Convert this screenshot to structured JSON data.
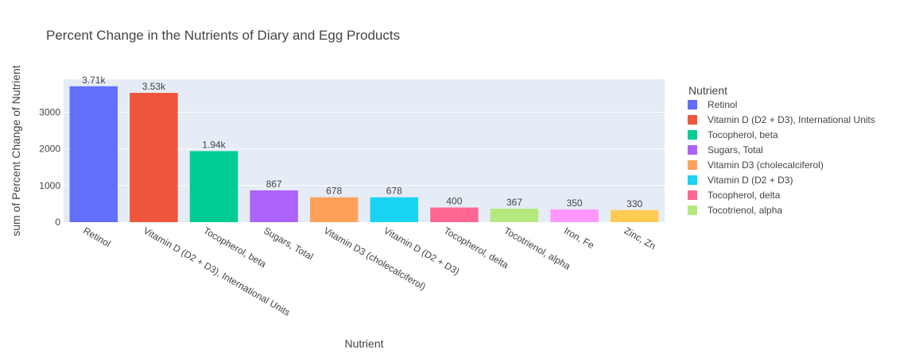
{
  "chart_data": {
    "type": "bar",
    "title": "Percent Change in the Nutrients of Diary and Egg Products",
    "xlabel": "Nutrient",
    "ylabel": "sum of Percent Change of Nutrient",
    "ylim": [
      0,
      3900
    ],
    "yticks": [
      0,
      1000,
      2000,
      3000
    ],
    "grid": true,
    "legend": {
      "title": "Nutrient",
      "position": "right"
    },
    "categories": [
      "Retinol",
      "Vitamin D (D2 + D3), International Units",
      "Tocopherol, beta",
      "Sugars, Total",
      "Vitamin D3 (cholecalciferol)",
      "Vitamin D (D2 + D3)",
      "Tocopherol, delta",
      "Tocotrienol, alpha",
      "Iron, Fe",
      "Zinc, Zn"
    ],
    "values": [
      3710,
      3530,
      1940,
      867,
      678,
      678,
      400,
      367,
      350,
      330
    ],
    "value_labels": [
      "3.71k",
      "3.53k",
      "1.94k",
      "867",
      "678",
      "678",
      "400",
      "367",
      "350",
      "330"
    ],
    "colors": [
      "#636efa",
      "#EF553B",
      "#00cc96",
      "#ab63fa",
      "#FFA15A",
      "#19d3f3",
      "#FF6692",
      "#B6E880",
      "#FF97FF",
      "#FECB52"
    ],
    "legend_entries": [
      "Retinol",
      "Vitamin D (D2 + D3), International Units",
      "Tocopherol, beta",
      "Sugars, Total",
      "Vitamin D3 (cholecalciferol)",
      "Vitamin D (D2 + D3)",
      "Tocopherol, delta",
      "Tocotrienol, alpha"
    ]
  }
}
